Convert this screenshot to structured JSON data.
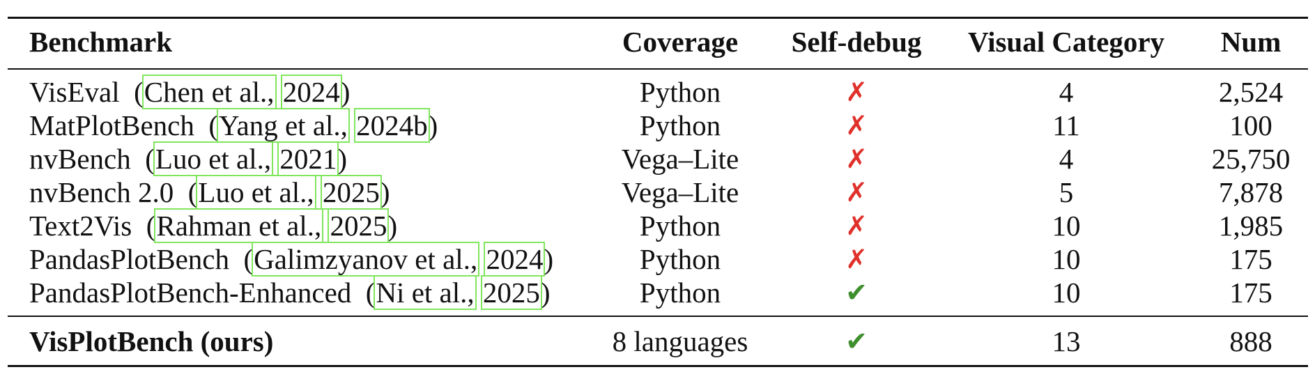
{
  "table": {
    "headers": {
      "benchmark": "Benchmark",
      "coverage": "Coverage",
      "self_debug": "Self-debug",
      "visual_category": "Visual Category",
      "num": "Num"
    },
    "rows": [
      {
        "name": "VisEval",
        "open": "(",
        "author": "Chen et al.,",
        "year": "2024",
        "close": ")",
        "coverage": "Python",
        "self_debug": "✗",
        "self_debug_state": "no",
        "visual_category": "4",
        "num": "2,524"
      },
      {
        "name": "MatPlotBench",
        "open": "(",
        "author": "Yang et al.,",
        "year": "2024b",
        "close": ")",
        "coverage": "Python",
        "self_debug": "✗",
        "self_debug_state": "no",
        "visual_category": "11",
        "num": "100"
      },
      {
        "name": "nvBench",
        "open": "(",
        "author": "Luo et al.,",
        "year": "2021",
        "close": ")",
        "coverage": "Vega–Lite",
        "self_debug": "✗",
        "self_debug_state": "no",
        "visual_category": "4",
        "num": "25,750"
      },
      {
        "name": "nvBench 2.0",
        "open": "(",
        "author": "Luo et al.,",
        "year": "2025",
        "close": ")",
        "coverage": "Vega–Lite",
        "self_debug": "✗",
        "self_debug_state": "no",
        "visual_category": "5",
        "num": "7,878"
      },
      {
        "name": "Text2Vis",
        "open": "(",
        "author": "Rahman et al.,",
        "year": "2025",
        "close": ")",
        "coverage": "Python",
        "self_debug": "✗",
        "self_debug_state": "no",
        "visual_category": "10",
        "num": "1,985"
      },
      {
        "name": "PandasPlotBench",
        "open": "(",
        "author": "Galimzyanov et al.,",
        "year": "2024",
        "close": ")",
        "coverage": "Python",
        "self_debug": "✗",
        "self_debug_state": "no",
        "visual_category": "10",
        "num": "175"
      },
      {
        "name": "PandasPlotBench-Enhanced",
        "open": "(",
        "author": "Ni et al.,",
        "year": "2025",
        "close": ")",
        "coverage": "Python",
        "self_debug": "✔",
        "self_debug_state": "yes",
        "visual_category": "10",
        "num": "175"
      }
    ],
    "ours": {
      "name": "VisPlotBench (ours)",
      "coverage": "8 languages",
      "self_debug": "✔",
      "self_debug_state": "yes",
      "visual_category": "13",
      "num": "888"
    }
  },
  "colors": {
    "cross": "#e0302a",
    "check": "#3f8f2e",
    "citation_box": "#7fe65c"
  }
}
